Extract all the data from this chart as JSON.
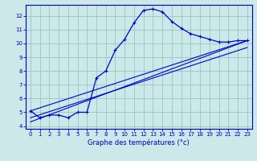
{
  "xlabel": "Graphe des températures (°c)",
  "bg_color": "#cce8e8",
  "grid_color": "#99cccc",
  "line_color": "#0000cc",
  "spine_color": "#0000cc",
  "xlim": [
    -0.5,
    23.5
  ],
  "ylim": [
    3.8,
    12.8
  ],
  "xticks": [
    0,
    1,
    2,
    3,
    4,
    5,
    6,
    7,
    8,
    9,
    10,
    11,
    12,
    13,
    14,
    15,
    16,
    17,
    18,
    19,
    20,
    21,
    22,
    23
  ],
  "yticks": [
    4,
    5,
    6,
    7,
    8,
    9,
    10,
    11,
    12
  ],
  "main_series": {
    "x": [
      0,
      1,
      2,
      3,
      4,
      5,
      6,
      7,
      8,
      9,
      10,
      11,
      12,
      13,
      14,
      15,
      16,
      17,
      18,
      19,
      20,
      21,
      22,
      23
    ],
    "y": [
      5.1,
      4.6,
      4.8,
      4.8,
      4.6,
      5.0,
      5.0,
      7.5,
      8.0,
      9.5,
      10.3,
      11.5,
      12.4,
      12.5,
      12.3,
      11.6,
      11.1,
      10.7,
      10.5,
      10.3,
      10.1,
      10.1,
      10.2,
      10.2
    ]
  },
  "linear_series": [
    {
      "x": [
        0,
        23
      ],
      "y": [
        5.1,
        10.2
      ]
    },
    {
      "x": [
        0,
        23
      ],
      "y": [
        4.6,
        9.7
      ]
    },
    {
      "x": [
        0,
        23
      ],
      "y": [
        4.3,
        10.2
      ]
    }
  ]
}
